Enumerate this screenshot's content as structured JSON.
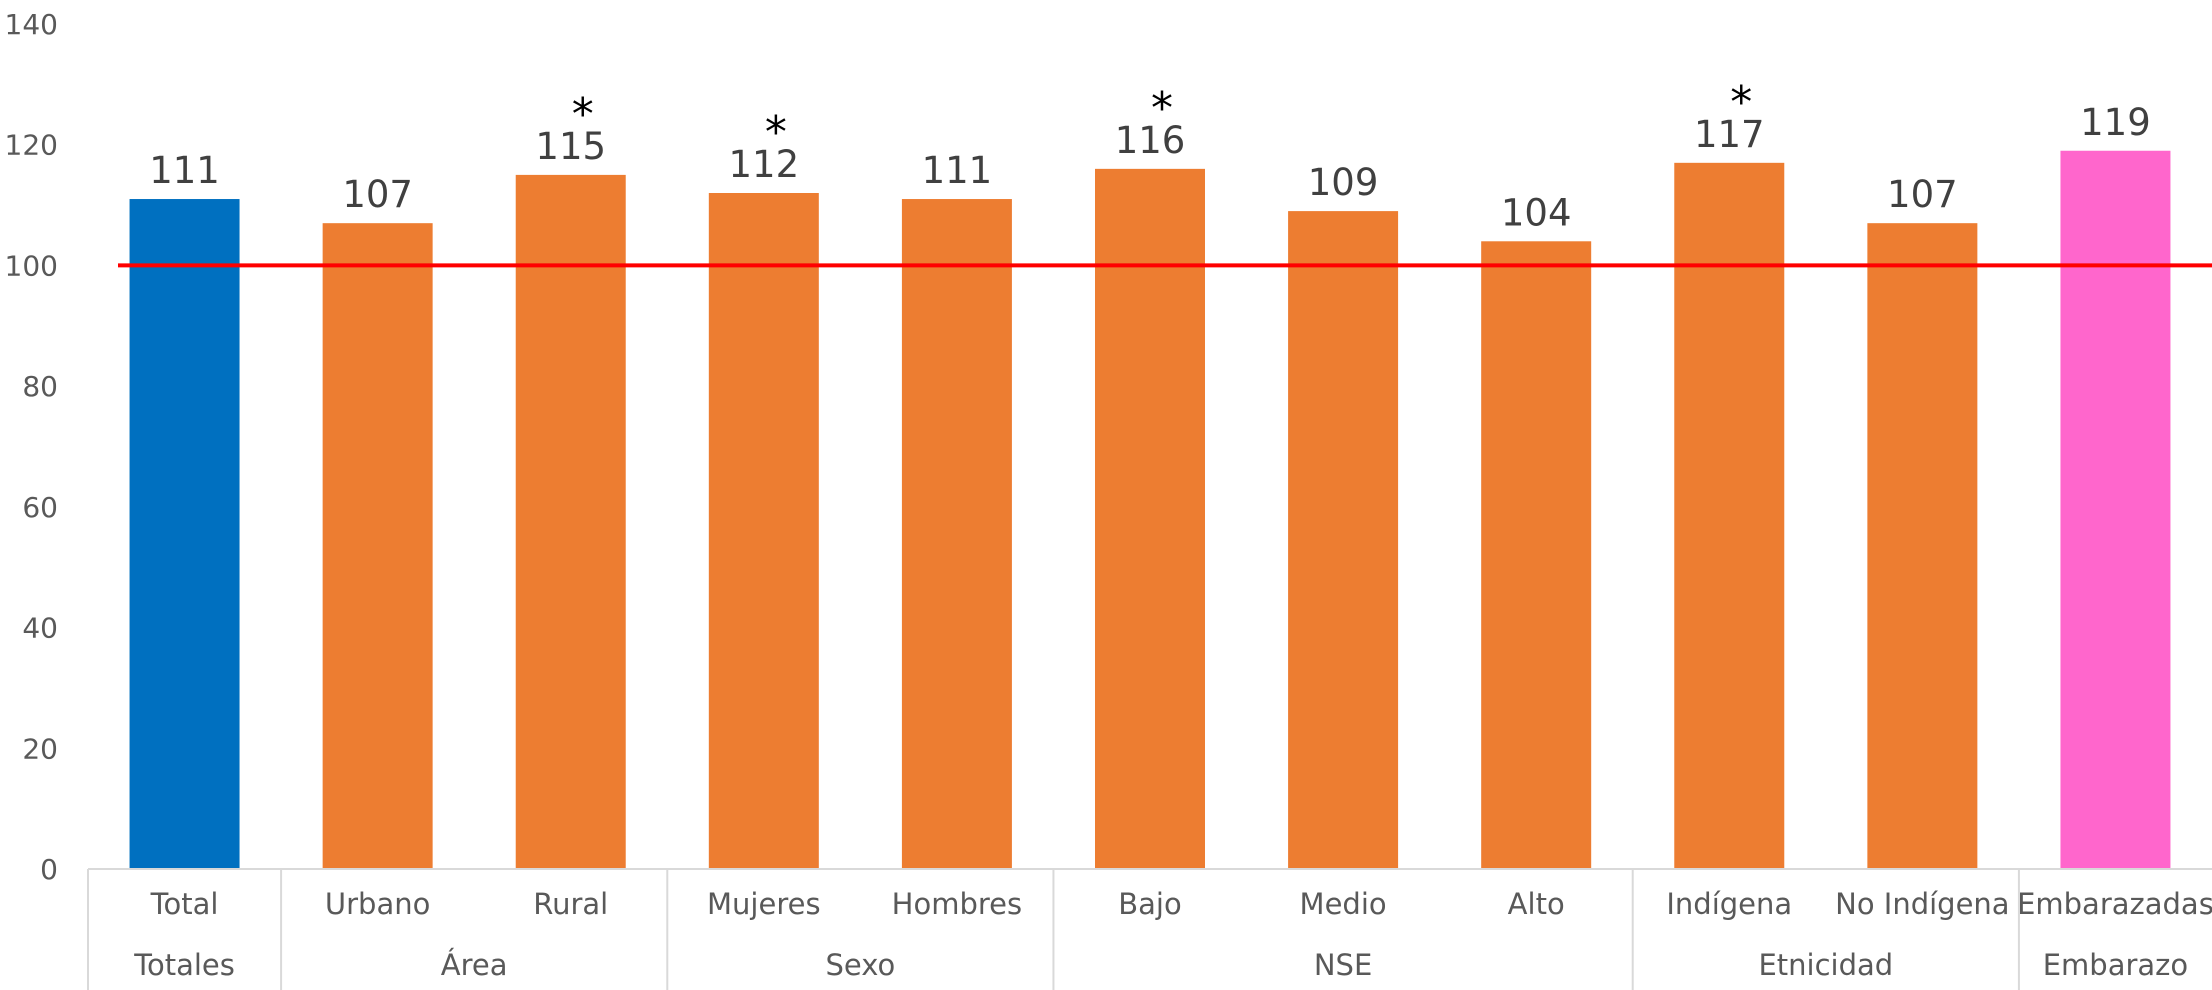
{
  "chart_data": {
    "type": "bar",
    "ylim": [
      0,
      140
    ],
    "yticks": [
      0,
      20,
      40,
      60,
      80,
      100,
      120,
      140
    ],
    "reference_line": {
      "value": 100,
      "color": "#FF0000"
    },
    "categories": [
      "Total",
      "Urbano",
      "Rural",
      "Mujeres",
      "Hombres",
      "Bajo",
      "Medio",
      "Alto",
      "Indígena",
      "No Indígena",
      "Embarazadas"
    ],
    "values": [
      111,
      107,
      115,
      112,
      111,
      116,
      109,
      104,
      117,
      107,
      119
    ],
    "value_labels": [
      "111",
      "107",
      "115",
      "112",
      "111",
      "116",
      "109",
      "104",
      "117",
      "107",
      "119"
    ],
    "significance_marks": [
      "",
      "",
      "*",
      "*",
      "",
      "*",
      "",
      "",
      "*",
      "",
      ""
    ],
    "bar_colors": [
      "#0070C0",
      "#ED7D31",
      "#ED7D31",
      "#ED7D31",
      "#ED7D31",
      "#ED7D31",
      "#ED7D31",
      "#ED7D31",
      "#ED7D31",
      "#ED7D31",
      "#FF66CC"
    ],
    "groups": [
      {
        "name": "Totales",
        "categories": [
          "Total"
        ]
      },
      {
        "name": "Área",
        "categories": [
          "Urbano",
          "Rural"
        ]
      },
      {
        "name": "Sexo",
        "categories": [
          "Mujeres",
          "Hombres"
        ]
      },
      {
        "name": "NSE",
        "categories": [
          "Bajo",
          "Medio",
          "Alto"
        ]
      },
      {
        "name": "Etnicidad",
        "categories": [
          "Indígena",
          "No Indígena"
        ]
      },
      {
        "name": "Embarazo",
        "categories": [
          "Embarazadas"
        ]
      }
    ],
    "grid": false,
    "legend": "none"
  }
}
